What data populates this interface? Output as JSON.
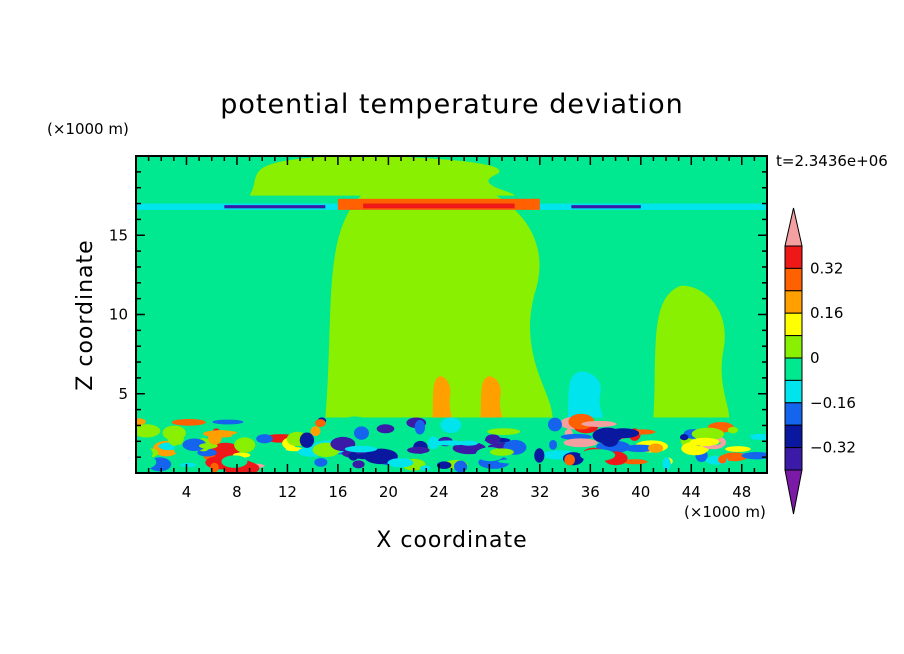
{
  "chart_data": {
    "type": "heatmap",
    "title": "potential temperature deviation",
    "time_label": "t=2.3436e+06",
    "xlabel": "X coordinate",
    "ylabel": "Z coordinate",
    "x_unit": "(×1000 m)",
    "y_unit": "(×1000 m)",
    "xlim": [
      0,
      50
    ],
    "ylim": [
      0,
      20
    ],
    "x_ticks": [
      4,
      8,
      12,
      16,
      20,
      24,
      28,
      32,
      36,
      40,
      44,
      48
    ],
    "y_ticks": [
      5,
      10,
      15
    ],
    "colorbar": {
      "levels": [
        -0.4,
        -0.32,
        -0.24,
        -0.16,
        -0.08,
        0,
        0.08,
        0.16,
        0.24,
        0.32,
        0.4
      ],
      "labels": [
        "0.32",
        "0.16",
        "0",
        "−0.16",
        "−0.32"
      ],
      "label_values": [
        0.32,
        0.16,
        0,
        -0.16,
        -0.32
      ],
      "colors": [
        "#7a1aa6",
        "#3a1aa6",
        "#0a18a0",
        "#1464ee",
        "#00e4ee",
        "#00e890",
        "#88f000",
        "#ffff00",
        "#ffa000",
        "#ff6000",
        "#ee1818",
        "#f4a0a0"
      ]
    },
    "background_color": "#88f000",
    "regions": [
      {
        "value": -0.04,
        "x": [
          0,
          50
        ],
        "z": [
          3.5,
          20
        ],
        "shape": "rect"
      },
      {
        "value": 0.04,
        "x": [
          15,
          33
        ],
        "z": [
          3.5,
          19
        ],
        "shape": "blob"
      },
      {
        "value": 0.04,
        "x": [
          41,
          47
        ],
        "z": [
          3.5,
          11.8
        ],
        "shape": "blob"
      },
      {
        "value": 0.04,
        "x": [
          9,
          30
        ],
        "z": [
          17.5,
          20
        ],
        "shape": "blob"
      },
      {
        "value": 0.2,
        "x": [
          23.5,
          25
        ],
        "z": [
          3.5,
          6.1
        ],
        "shape": "blob"
      },
      {
        "value": 0.2,
        "x": [
          27.3,
          29
        ],
        "z": [
          3.5,
          6.1
        ],
        "shape": "blob"
      },
      {
        "value": -0.12,
        "x": [
          34.2,
          37
        ],
        "z": [
          3.5,
          6.4
        ],
        "shape": "blob"
      },
      {
        "value": -0.12,
        "x": [
          0,
          50
        ],
        "z": [
          16.6,
          17.0
        ],
        "shape": "band"
      },
      {
        "value": -0.34,
        "x": [
          7,
          15
        ],
        "z": [
          16.7,
          16.9
        ],
        "shape": "band"
      },
      {
        "value": -0.34,
        "x": [
          34.5,
          40
        ],
        "z": [
          16.7,
          16.9
        ],
        "shape": "band"
      },
      {
        "value": 0.28,
        "x": [
          16,
          32
        ],
        "z": [
          16.6,
          17.3
        ],
        "shape": "band"
      },
      {
        "value": 0.36,
        "x": [
          18,
          30
        ],
        "z": [
          16.7,
          17.0
        ],
        "shape": "band"
      },
      {
        "value": 0.08,
        "x": [
          0,
          50
        ],
        "z": [
          0,
          3.5
        ],
        "shape": "turbulent"
      }
    ]
  }
}
